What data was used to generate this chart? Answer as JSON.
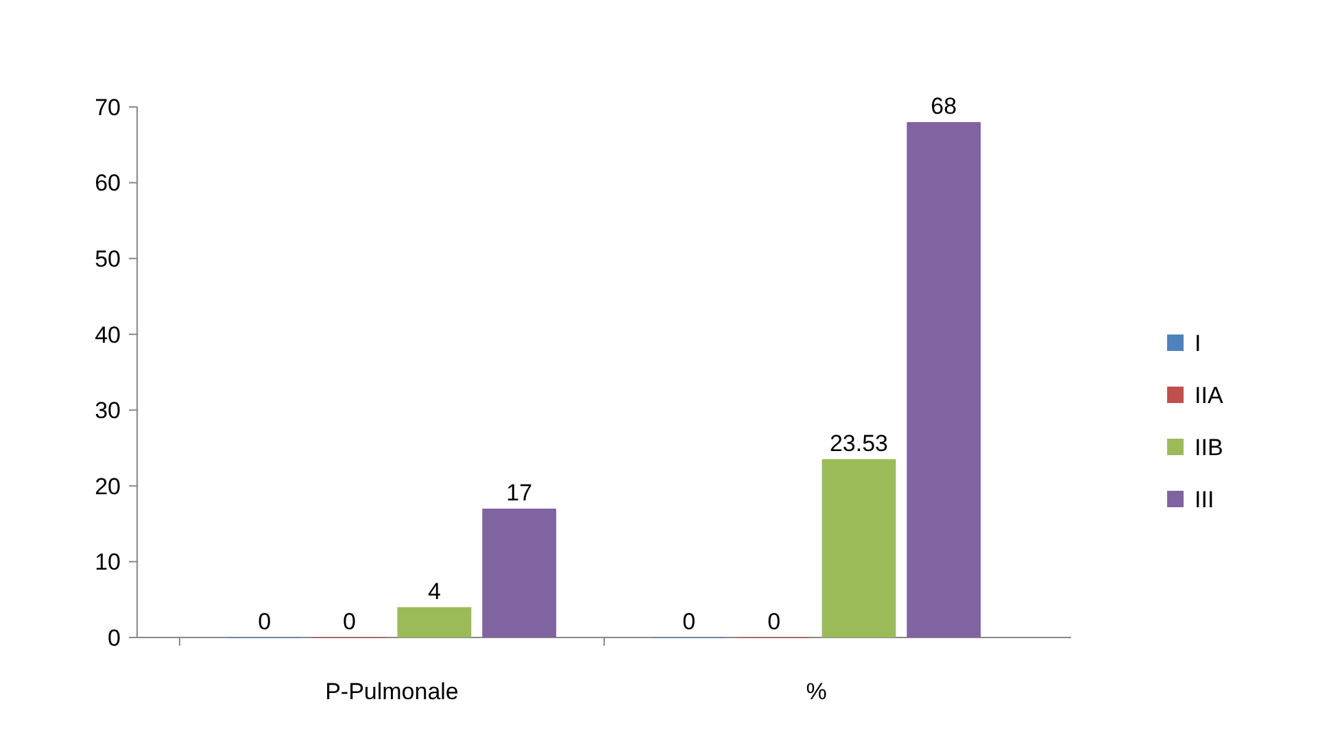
{
  "chart_data": {
    "type": "bar",
    "categories": [
      "P-Pulmonale",
      "%"
    ],
    "series": [
      {
        "name": "I",
        "color": "#4f81bd",
        "values": [
          0,
          0
        ]
      },
      {
        "name": "IIA",
        "color": "#c0504d",
        "values": [
          0,
          0
        ]
      },
      {
        "name": "IIB",
        "color": "#9bbb59",
        "values": [
          4,
          23.53
        ]
      },
      {
        "name": "III",
        "color": "#8064a2",
        "values": [
          17,
          68
        ]
      }
    ],
    "ylim": [
      0,
      70
    ],
    "yticks": [
      0,
      10,
      20,
      30,
      40,
      50,
      60,
      70
    ],
    "data_labels": true,
    "legend": "right",
    "grid": false
  }
}
